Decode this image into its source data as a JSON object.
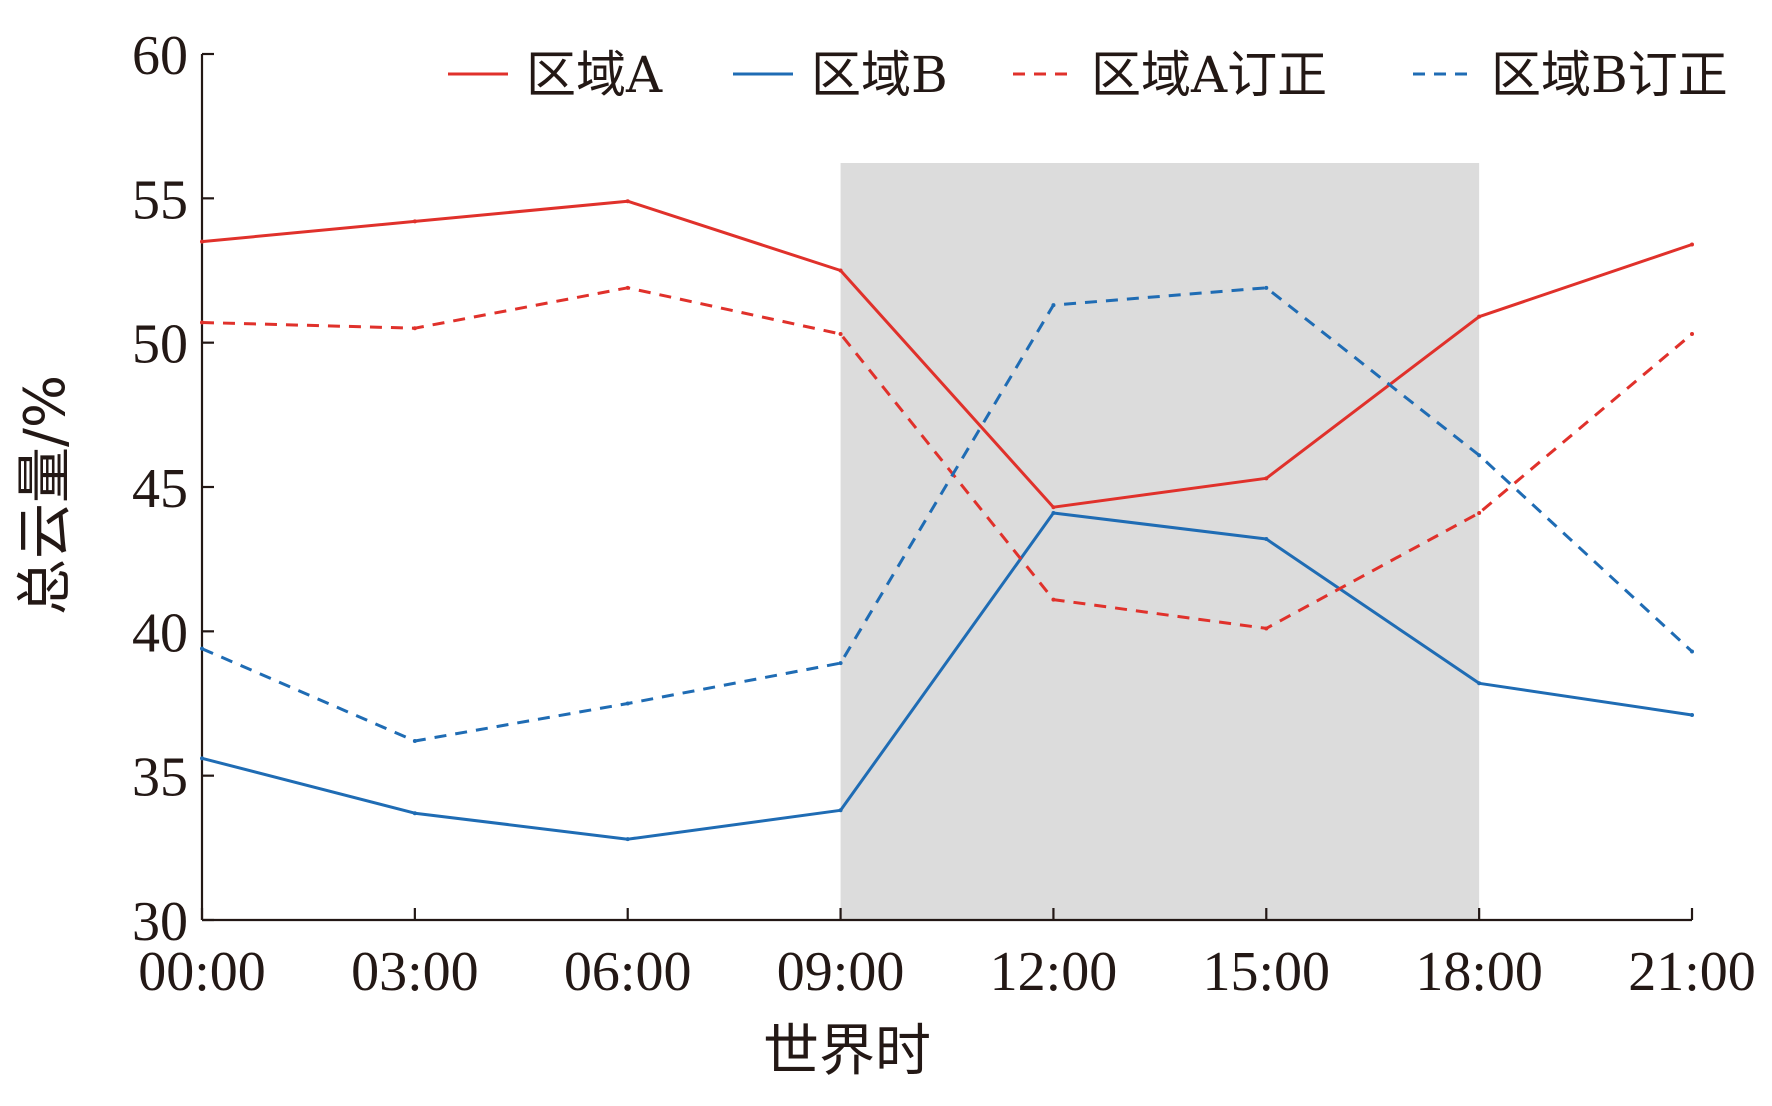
{
  "chart_data": {
    "type": "line",
    "xlabel": "世界时",
    "ylabel": "总云量/%",
    "categories": [
      "00:00",
      "03:00",
      "06:00",
      "09:00",
      "12:00",
      "15:00",
      "18:00",
      "21:00"
    ],
    "ylim": [
      30,
      60
    ],
    "yticks": [
      30,
      35,
      40,
      45,
      50,
      55,
      60
    ],
    "grid": false,
    "legend_position": "top",
    "shaded_range": [
      "09:00",
      "18:00"
    ],
    "shade_color": "#dcdcdc",
    "series": [
      {
        "name": "区域A",
        "color": "#e0312b",
        "dash": "solid",
        "values": [
          53.5,
          54.2,
          54.9,
          52.5,
          44.3,
          45.3,
          50.9,
          53.4
        ]
      },
      {
        "name": "区域B",
        "color": "#1f6cb4",
        "dash": "solid",
        "values": [
          35.6,
          33.7,
          32.8,
          33.8,
          44.1,
          43.2,
          38.2,
          37.1
        ]
      },
      {
        "name": "区域A订正",
        "color": "#e0312b",
        "dash": "dashed",
        "values": [
          50.7,
          50.5,
          51.9,
          50.3,
          41.1,
          40.1,
          44.1,
          50.3
        ]
      },
      {
        "name": "区域B订正",
        "color": "#1f6cb4",
        "dash": "dashed",
        "values": [
          39.4,
          36.2,
          37.5,
          38.9,
          51.3,
          51.9,
          46.1,
          39.3
        ]
      }
    ]
  }
}
